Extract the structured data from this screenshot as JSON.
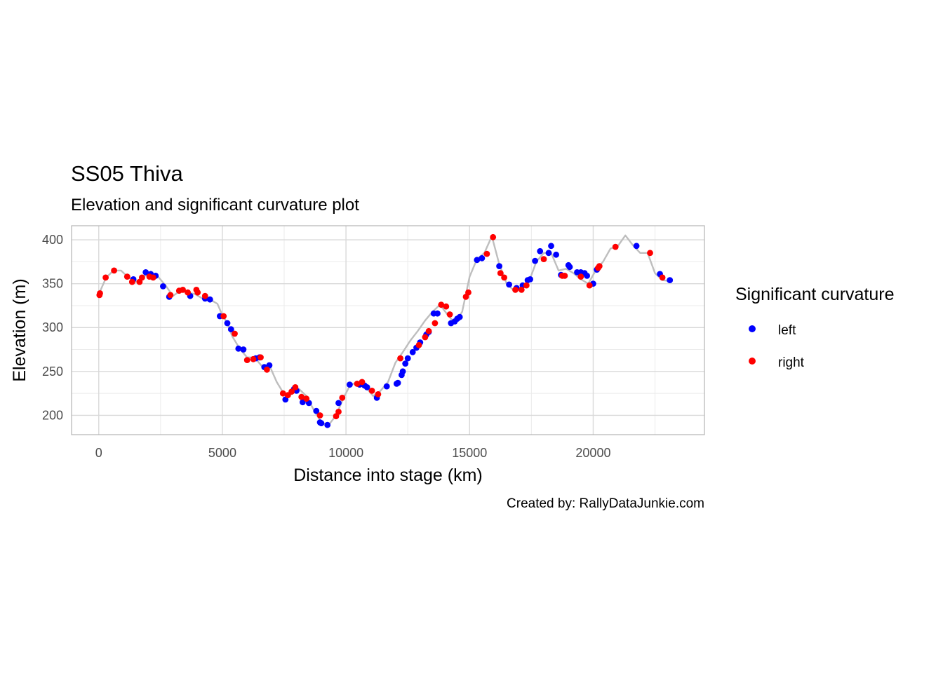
{
  "colors": {
    "left": "#0000ff",
    "right": "#ff0000",
    "elevation_line": "#bebebe",
    "grid_major": "#d9d9d9",
    "grid_minor": "#ebebeb",
    "panel_border": "#b3b3b3"
  },
  "chart_data": {
    "type": "line+scatter",
    "title": "SS05 Thiva",
    "subtitle": "Elevation and significant curvature plot",
    "xlabel": "Distance into stage (km)",
    "ylabel": "Elevation (m)",
    "caption": "Created by: RallyDataJunkie.com",
    "xlim": [
      -1100,
      24500
    ],
    "ylim": [
      178,
      416
    ],
    "x_ticks": [
      0,
      5000,
      10000,
      15000,
      20000
    ],
    "x_tick_labels": [
      "0",
      "5000",
      "10000",
      "15000",
      "20000"
    ],
    "y_ticks": [
      200,
      250,
      300,
      350,
      400
    ],
    "y_tick_labels": [
      "200",
      "250",
      "300",
      "350",
      "400"
    ],
    "grid": true,
    "legend": {
      "title": "Significant curvature",
      "position": "right",
      "entries": [
        "left",
        "right"
      ]
    },
    "elevation_profile": {
      "x": [
        0,
        300,
        600,
        900,
        1200,
        1500,
        1800,
        2100,
        2400,
        2700,
        3000,
        3300,
        3600,
        3900,
        4200,
        4500,
        4800,
        5000,
        5200,
        5400,
        5700,
        6000,
        6300,
        6600,
        6900,
        7200,
        7500,
        7800,
        8100,
        8400,
        8700,
        9000,
        9300,
        9600,
        9900,
        10200,
        10500,
        10800,
        11100,
        11400,
        11700,
        12000,
        12300,
        12600,
        12900,
        13200,
        13500,
        13800,
        14100,
        14400,
        14700,
        15000,
        15300,
        15600,
        15900,
        16200,
        16500,
        16800,
        17100,
        17400,
        17700,
        18000,
        18300,
        18600,
        18900,
        19200,
        19500,
        19800,
        20100,
        20400,
        20700,
        21000,
        21300,
        21600,
        21900,
        22200,
        22500,
        22800,
        23100
      ],
      "y": [
        338,
        357,
        365,
        365,
        357,
        352,
        358,
        362,
        358,
        348,
        336,
        342,
        340,
        338,
        333,
        332,
        327,
        314,
        305,
        290,
        276,
        266,
        266,
        256,
        257,
        238,
        224,
        224,
        230,
        222,
        206,
        192,
        189,
        200,
        220,
        236,
        236,
        232,
        222,
        228,
        238,
        260,
        272,
        285,
        296,
        308,
        318,
        326,
        315,
        305,
        318,
        358,
        378,
        385,
        404,
        372,
        350,
        342,
        346,
        352,
        375,
        385,
        385,
        365,
        367,
        362,
        355,
        350,
        365,
        375,
        390,
        393,
        405,
        394,
        385,
        385,
        362,
        354,
        353
      ]
    },
    "series": [
      {
        "name": "left",
        "points": [
          [
            1400,
            355
          ],
          [
            1900,
            363
          ],
          [
            2100,
            361
          ],
          [
            2300,
            359
          ],
          [
            2600,
            347
          ],
          [
            2850,
            335
          ],
          [
            3700,
            336
          ],
          [
            4300,
            333
          ],
          [
            4500,
            332
          ],
          [
            4900,
            313
          ],
          [
            5200,
            305
          ],
          [
            5350,
            298
          ],
          [
            5650,
            276
          ],
          [
            5850,
            275
          ],
          [
            6350,
            265
          ],
          [
            6500,
            266
          ],
          [
            6700,
            255
          ],
          [
            6900,
            257
          ],
          [
            7550,
            218
          ],
          [
            7900,
            230
          ],
          [
            8000,
            228
          ],
          [
            8250,
            215
          ],
          [
            8500,
            214
          ],
          [
            8800,
            205
          ],
          [
            8950,
            192
          ],
          [
            9000,
            191
          ],
          [
            9250,
            189
          ],
          [
            9700,
            214
          ],
          [
            10150,
            235
          ],
          [
            10550,
            235
          ],
          [
            10750,
            234
          ],
          [
            10850,
            232
          ],
          [
            11250,
            220
          ],
          [
            11650,
            233
          ],
          [
            12050,
            236
          ],
          [
            12100,
            237
          ],
          [
            12250,
            246
          ],
          [
            12300,
            250
          ],
          [
            12400,
            259
          ],
          [
            12500,
            265
          ],
          [
            12700,
            272
          ],
          [
            12850,
            277
          ],
          [
            13000,
            283
          ],
          [
            13250,
            292
          ],
          [
            13350,
            295
          ],
          [
            13550,
            316
          ],
          [
            13700,
            316
          ],
          [
            14250,
            305
          ],
          [
            14400,
            307
          ],
          [
            14500,
            310
          ],
          [
            14600,
            312
          ],
          [
            15300,
            377
          ],
          [
            15500,
            379
          ],
          [
            16200,
            370
          ],
          [
            16600,
            349
          ],
          [
            16900,
            345
          ],
          [
            17150,
            348
          ],
          [
            17350,
            354
          ],
          [
            17450,
            355
          ],
          [
            17650,
            376
          ],
          [
            17850,
            387
          ],
          [
            18200,
            385
          ],
          [
            18300,
            393
          ],
          [
            18500,
            383
          ],
          [
            18700,
            360
          ],
          [
            19000,
            371
          ],
          [
            19050,
            369
          ],
          [
            19350,
            363
          ],
          [
            19500,
            363
          ],
          [
            19650,
            362
          ],
          [
            19750,
            359
          ],
          [
            20000,
            350
          ],
          [
            20150,
            366
          ],
          [
            21750,
            393
          ],
          [
            22700,
            361
          ],
          [
            23100,
            354
          ]
        ]
      },
      {
        "name": "right",
        "points": [
          [
            30,
            337
          ],
          [
            50,
            339
          ],
          [
            280,
            357
          ],
          [
            620,
            365
          ],
          [
            1150,
            358
          ],
          [
            1350,
            352
          ],
          [
            1650,
            352
          ],
          [
            1750,
            357
          ],
          [
            2050,
            358
          ],
          [
            2200,
            357
          ],
          [
            2900,
            337
          ],
          [
            3250,
            342
          ],
          [
            3400,
            343
          ],
          [
            3600,
            340
          ],
          [
            3950,
            343
          ],
          [
            4000,
            340
          ],
          [
            4300,
            336
          ],
          [
            5050,
            313
          ],
          [
            5500,
            293
          ],
          [
            6000,
            263
          ],
          [
            6250,
            264
          ],
          [
            6550,
            266
          ],
          [
            6800,
            252
          ],
          [
            7450,
            225
          ],
          [
            7650,
            223
          ],
          [
            7800,
            227
          ],
          [
            7950,
            232
          ],
          [
            8200,
            221
          ],
          [
            8400,
            219
          ],
          [
            8950,
            200
          ],
          [
            9600,
            199
          ],
          [
            9700,
            204
          ],
          [
            9850,
            220
          ],
          [
            10450,
            236
          ],
          [
            10650,
            238
          ],
          [
            11050,
            228
          ],
          [
            11300,
            224
          ],
          [
            12200,
            265
          ],
          [
            12950,
            280
          ],
          [
            13200,
            289
          ],
          [
            13350,
            296
          ],
          [
            13600,
            305
          ],
          [
            13850,
            326
          ],
          [
            14050,
            324
          ],
          [
            14200,
            315
          ],
          [
            14850,
            335
          ],
          [
            14950,
            340
          ],
          [
            15700,
            384
          ],
          [
            15950,
            403
          ],
          [
            16250,
            362
          ],
          [
            16400,
            357
          ],
          [
            16850,
            343
          ],
          [
            17100,
            343
          ],
          [
            17300,
            348
          ],
          [
            18000,
            378
          ],
          [
            18750,
            359
          ],
          [
            18850,
            359
          ],
          [
            19500,
            358
          ],
          [
            19850,
            348
          ],
          [
            20200,
            368
          ],
          [
            20250,
            370
          ],
          [
            20900,
            392
          ],
          [
            22300,
            385
          ],
          [
            22800,
            357
          ]
        ]
      }
    ]
  }
}
